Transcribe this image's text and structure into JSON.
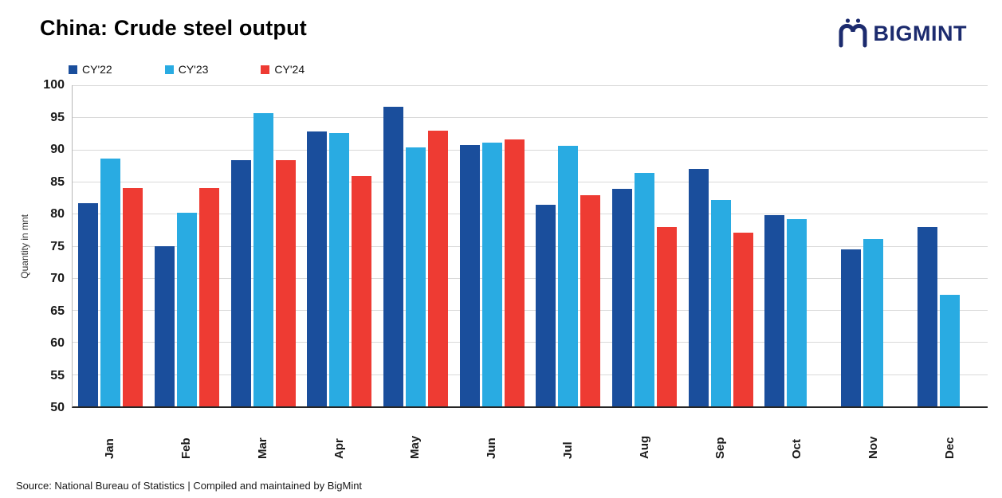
{
  "header": {
    "title": "China: Crude steel output",
    "brand": "BIGMINT"
  },
  "chart_data": {
    "type": "bar",
    "title": "China: Crude steel output",
    "ylabel": "Quantity in mnt",
    "xlabel": "",
    "ylim": [
      50,
      100
    ],
    "yticks": [
      100,
      95,
      90,
      85,
      80,
      75,
      70,
      65,
      60,
      55,
      50
    ],
    "grid": true,
    "legend_position": "top-left",
    "categories": [
      "Jan",
      "Feb",
      "Mar",
      "Apr",
      "May",
      "Jun",
      "Jul",
      "Aug",
      "Sep",
      "Oct",
      "Nov",
      "Dec"
    ],
    "series": [
      {
        "name": "CY'22",
        "color": "#1a4e9c",
        "values": [
          81.7,
          75.0,
          88.3,
          92.8,
          96.6,
          90.7,
          81.4,
          83.9,
          87.0,
          79.8,
          74.5,
          77.9
        ]
      },
      {
        "name": "CY'23",
        "color": "#29abe2",
        "values": [
          88.6,
          80.1,
          95.7,
          92.6,
          90.3,
          91.1,
          90.6,
          86.4,
          82.1,
          79.1,
          76.0,
          67.4
        ]
      },
      {
        "name": "CY'24",
        "color": "#ee3b33",
        "values": [
          84.0,
          84.0,
          88.3,
          85.9,
          92.9,
          91.6,
          82.9,
          77.9,
          77.0,
          null,
          null,
          null
        ]
      }
    ]
  },
  "footer": {
    "source": "Source: National Bureau of Statistics | Compiled and maintained by BigMint"
  }
}
